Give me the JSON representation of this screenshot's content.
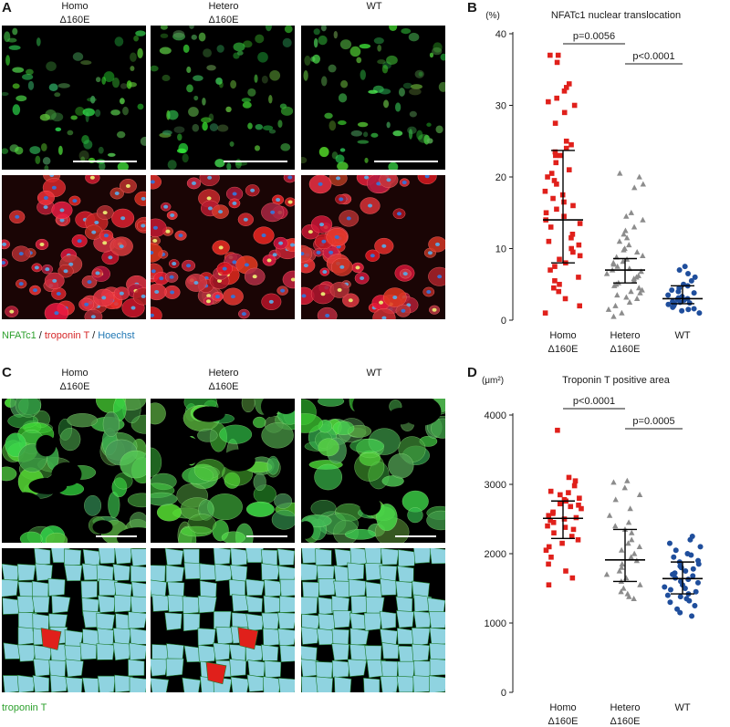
{
  "panel_labels": {
    "A": "A",
    "B": "B",
    "C": "C",
    "D": "D"
  },
  "panel_A": {
    "columns": [
      {
        "line1": "Homo",
        "line2": "Δ160E"
      },
      {
        "line1": "Hetero",
        "line2": "Δ160E"
      },
      {
        "line1": "WT",
        "line2": ""
      }
    ],
    "legend": {
      "nfatc1": "NFATc1",
      "sep1": " / ",
      "troponin": "troponin T",
      "sep2": " / ",
      "hoechst": "Hoechst"
    },
    "colors": {
      "nfatc1": "#2ca02c",
      "troponin": "#d62728",
      "hoechst": "#1f77b4"
    }
  },
  "panel_C": {
    "columns": [
      {
        "line1": "Homo",
        "line2": "Δ160E"
      },
      {
        "line1": "Hetero",
        "line2": "Δ160E"
      },
      {
        "line1": "WT",
        "line2": ""
      }
    ],
    "legend": "troponin T",
    "legend_color": "#2ca02c",
    "segmentation_colors": {
      "cell": "#8fd3e0",
      "outlier": "#e0201b",
      "edge": "#1d7a2a"
    }
  },
  "chart_data": [
    {
      "panel": "B",
      "type": "scatter",
      "title": "NFATc1 nuclear translocation",
      "unit": "(%)",
      "ylim": [
        0,
        40
      ],
      "yticks": [
        0,
        10,
        20,
        30,
        40
      ],
      "categories": [
        {
          "line1": "Homo",
          "line2": "Δ160E"
        },
        {
          "line1": "Hetero",
          "line2": "Δ160E"
        },
        {
          "line1": "WT",
          "line2": ""
        }
      ],
      "series": [
        {
          "marker": "square",
          "color": "#e0201b",
          "median": 14,
          "q1": 8,
          "q3": 23.7,
          "values": [
            37,
            37,
            36,
            33,
            32.5,
            32,
            31,
            30.5,
            30,
            29,
            27.5,
            25,
            24.5,
            24,
            23.5,
            23,
            23,
            22,
            21,
            20.5,
            20,
            19.5,
            19,
            18,
            17.5,
            17,
            16.5,
            16,
            15.5,
            15,
            14.5,
            14,
            13.5,
            13,
            12,
            11.5,
            11,
            10.5,
            10,
            9.5,
            9,
            8.5,
            8,
            7.5,
            7,
            6,
            5.5,
            5,
            4.5,
            4,
            3,
            2,
            1
          ]
        },
        {
          "marker": "triangle",
          "color": "#8c8c8c",
          "median": 7,
          "q1": 5.2,
          "q3": 8.6,
          "values": [
            20.5,
            20,
            19,
            18.5,
            15,
            14.5,
            14,
            13,
            12.5,
            12,
            11.5,
            11,
            10.5,
            10,
            9.8,
            9.5,
            9,
            8.8,
            8.5,
            8.2,
            8,
            7.8,
            7.5,
            7.2,
            7,
            6.8,
            6.5,
            6.2,
            6,
            5.8,
            5.5,
            5.2,
            5,
            4.8,
            4.5,
            4.2,
            4,
            3.8,
            3.5,
            3.2,
            3,
            2.5,
            2,
            1.5,
            1,
            0.5
          ]
        },
        {
          "marker": "circle",
          "color": "#1f4e9c",
          "median": 3,
          "q1": 2.3,
          "q3": 4.8,
          "values": [
            7.5,
            7,
            6.5,
            6,
            5.5,
            5,
            4.8,
            4.5,
            4.2,
            4,
            3.8,
            3.5,
            3.3,
            3.1,
            3,
            2.9,
            2.8,
            2.6,
            2.5,
            2.4,
            2.3,
            2.2,
            2,
            1.8,
            1.6,
            1.5,
            1.3,
            1
          ]
        }
      ],
      "comparisons": [
        {
          "from": 0,
          "to": 1,
          "label": "p=0.0056"
        },
        {
          "from": 1,
          "to": 2,
          "label": "p<0.0001"
        }
      ]
    },
    {
      "panel": "D",
      "type": "scatter",
      "title": "Troponin T positive area",
      "unit": "(μm²)",
      "ylim": [
        0,
        4000
      ],
      "yticks": [
        0,
        1000,
        2000,
        3000,
        4000
      ],
      "categories": [
        {
          "line1": "Homo",
          "line2": "Δ160E"
        },
        {
          "line1": "Hetero",
          "line2": "Δ160E"
        },
        {
          "line1": "WT",
          "line2": ""
        }
      ],
      "series": [
        {
          "marker": "square",
          "color": "#e0201b",
          "median": 2510,
          "q1": 2220,
          "q3": 2760,
          "values": [
            3780,
            3100,
            3050,
            2980,
            2900,
            2880,
            2850,
            2800,
            2780,
            2760,
            2720,
            2700,
            2680,
            2650,
            2600,
            2580,
            2550,
            2520,
            2500,
            2480,
            2450,
            2400,
            2380,
            2350,
            2300,
            2250,
            2200,
            2150,
            2100,
            2050,
            1950,
            1850,
            1750,
            1650,
            1550
          ]
        },
        {
          "marker": "triangle",
          "color": "#8c8c8c",
          "median": 1910,
          "q1": 1600,
          "q3": 2350,
          "values": [
            3050,
            3030,
            2950,
            2850,
            2780,
            2650,
            2550,
            2450,
            2400,
            2350,
            2300,
            2200,
            2150,
            2100,
            2050,
            2000,
            1950,
            1900,
            1850,
            1800,
            1750,
            1700,
            1650,
            1600,
            1550,
            1500,
            1450,
            1420,
            1380,
            1350
          ]
        },
        {
          "marker": "circle",
          "color": "#1f4e9c",
          "median": 1640,
          "q1": 1420,
          "q3": 1880,
          "values": [
            2250,
            2200,
            2150,
            2100,
            2050,
            2000,
            1980,
            1950,
            1900,
            1880,
            1850,
            1820,
            1800,
            1780,
            1750,
            1720,
            1700,
            1680,
            1650,
            1630,
            1600,
            1580,
            1550,
            1520,
            1500,
            1480,
            1450,
            1420,
            1400,
            1380,
            1350,
            1320,
            1300,
            1250,
            1200,
            1150,
            1100
          ]
        }
      ],
      "comparisons": [
        {
          "from": 0,
          "to": 1,
          "label": "p<0.0001"
        },
        {
          "from": 1,
          "to": 2,
          "label": "p=0.0005"
        }
      ]
    }
  ]
}
